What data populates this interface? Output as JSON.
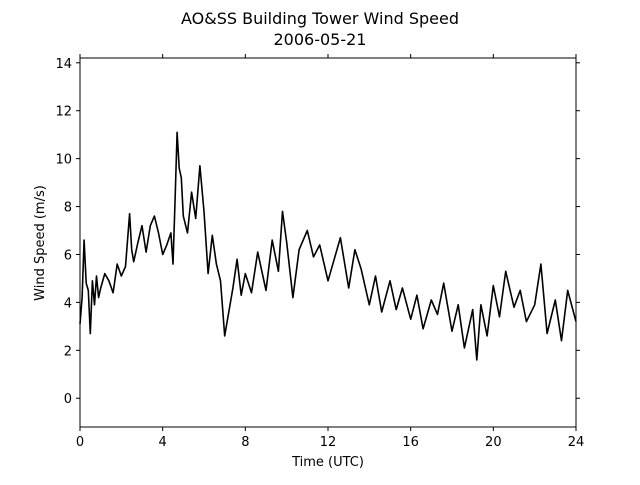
{
  "chart_data": {
    "type": "line",
    "title": "AO&SS Building Tower Wind Speed",
    "subtitle": "2006-05-21",
    "xlabel": "Time (UTC)",
    "ylabel": "Wind Speed (m/s)",
    "xlim": [
      0,
      24
    ],
    "ylim": [
      -1.2,
      14.2
    ],
    "xticks": [
      0,
      4,
      8,
      12,
      16,
      20,
      24
    ],
    "yticks": [
      0,
      2,
      4,
      6,
      8,
      10,
      12,
      14
    ],
    "grid": false,
    "line_color": "#000000",
    "series": [
      {
        "x": [
          0.0,
          0.1,
          0.2,
          0.3,
          0.4,
          0.5,
          0.6,
          0.7,
          0.8,
          0.9,
          1.0,
          1.2,
          1.4,
          1.6,
          1.8,
          2.0,
          2.2,
          2.4,
          2.5,
          2.6,
          2.8,
          3.0,
          3.2,
          3.4,
          3.6,
          3.8,
          4.0,
          4.2,
          4.4,
          4.5,
          4.6,
          4.7,
          4.8,
          4.9,
          5.0,
          5.2,
          5.4,
          5.6,
          5.8,
          6.0,
          6.2,
          6.4,
          6.6,
          6.8,
          7.0,
          7.2,
          7.4,
          7.6,
          7.8,
          8.0,
          8.3,
          8.6,
          9.0,
          9.3,
          9.6,
          9.8,
          10.0,
          10.3,
          10.6,
          11.0,
          11.3,
          11.6,
          12.0,
          12.3,
          12.6,
          13.0,
          13.3,
          13.6,
          14.0,
          14.3,
          14.6,
          15.0,
          15.3,
          15.6,
          16.0,
          16.3,
          16.6,
          17.0,
          17.3,
          17.6,
          18.0,
          18.3,
          18.6,
          19.0,
          19.2,
          19.4,
          19.7,
          20.0,
          20.3,
          20.6,
          21.0,
          21.3,
          21.6,
          22.0,
          22.3,
          22.6,
          23.0,
          23.3,
          23.6,
          24.0
        ],
        "y": [
          3.1,
          4.2,
          6.6,
          4.8,
          4.5,
          2.7,
          4.9,
          3.9,
          5.1,
          4.2,
          4.6,
          5.2,
          4.9,
          4.4,
          5.6,
          5.1,
          5.5,
          7.7,
          6.2,
          5.7,
          6.5,
          7.2,
          6.1,
          7.2,
          7.6,
          6.9,
          6.0,
          6.4,
          6.9,
          5.6,
          8.3,
          11.1,
          9.6,
          9.2,
          7.6,
          6.9,
          8.6,
          7.5,
          9.7,
          7.8,
          5.2,
          6.8,
          5.6,
          4.9,
          2.6,
          3.6,
          4.6,
          5.8,
          4.3,
          5.2,
          4.4,
          6.1,
          4.5,
          6.6,
          5.3,
          7.8,
          6.5,
          4.2,
          6.2,
          7.0,
          5.9,
          6.4,
          4.9,
          5.8,
          6.7,
          4.6,
          6.2,
          5.4,
          3.9,
          5.1,
          3.6,
          4.9,
          3.7,
          4.6,
          3.3,
          4.3,
          2.9,
          4.1,
          3.5,
          4.8,
          2.8,
          3.9,
          2.1,
          3.7,
          1.6,
          3.9,
          2.6,
          4.7,
          3.4,
          5.3,
          3.8,
          4.5,
          3.2,
          3.9,
          5.6,
          2.7,
          4.1,
          2.4,
          4.5,
          3.2
        ]
      }
    ]
  }
}
